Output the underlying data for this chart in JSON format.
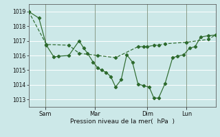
{
  "title": "",
  "xlabel": "Pression niveau de la mer(  hPa  )",
  "ylabel": "",
  "background_color": "#cce8e8",
  "grid_color": "#ffffff",
  "line_color": "#2d6a2d",
  "ylim": [
    1012.5,
    1019.5
  ],
  "yticks": [
    1013,
    1014,
    1015,
    1016,
    1017,
    1018,
    1019
  ],
  "xtick_labels": [
    "Sam",
    "Mar",
    "Dim",
    "Lun"
  ],
  "xtick_pos": [
    0.09,
    0.355,
    0.635,
    0.845
  ],
  "series1_x": [
    0.0,
    0.055,
    0.095,
    0.135,
    0.16,
    0.215,
    0.27,
    0.295,
    0.315,
    0.345,
    0.37,
    0.39,
    0.415,
    0.44,
    0.465,
    0.495,
    0.525,
    0.555,
    0.585,
    0.615,
    0.645,
    0.67,
    0.695,
    0.73,
    0.77,
    0.795,
    0.83,
    0.86,
    0.89,
    0.92,
    0.96,
    1.0
  ],
  "series1_y": [
    1019.0,
    1018.55,
    1016.7,
    1015.9,
    1015.95,
    1016.0,
    1017.0,
    1016.5,
    1016.15,
    1015.55,
    1015.15,
    1015.0,
    1014.85,
    1014.55,
    1013.85,
    1014.35,
    1016.05,
    1015.55,
    1014.05,
    1013.95,
    1013.85,
    1013.1,
    1013.1,
    1014.1,
    1015.85,
    1015.95,
    1016.05,
    1016.5,
    1016.6,
    1017.25,
    1017.35,
    1017.4
  ],
  "series2_x": [
    0.0,
    0.095,
    0.215,
    0.27,
    0.37,
    0.465,
    0.585,
    0.615,
    0.635,
    0.67,
    0.695,
    0.73,
    0.845,
    0.96,
    1.0
  ],
  "series2_y": [
    1019.0,
    1016.75,
    1016.7,
    1016.15,
    1016.0,
    1015.85,
    1016.6,
    1016.6,
    1016.6,
    1016.7,
    1016.7,
    1016.8,
    1016.9,
    1017.1,
    1017.4
  ],
  "figsize": [
    3.2,
    2.0
  ],
  "dpi": 100
}
